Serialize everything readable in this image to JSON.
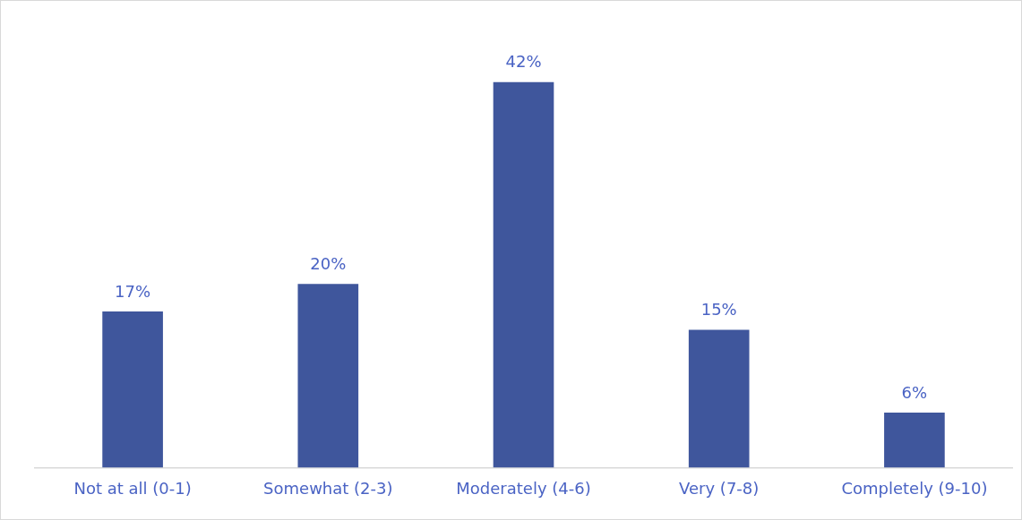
{
  "chart_data": {
    "type": "bar",
    "categories": [
      "Not at all (0-1)",
      "Somewhat (2-3)",
      "Moderately (4-6)",
      "Very (7-8)",
      "Completely (9-10)"
    ],
    "values": [
      17,
      20,
      42,
      15,
      6
    ],
    "value_labels": [
      "17%",
      "20%",
      "42%",
      "15%",
      "6%"
    ],
    "color": "#3f569c",
    "grid": false,
    "legend": false
  }
}
